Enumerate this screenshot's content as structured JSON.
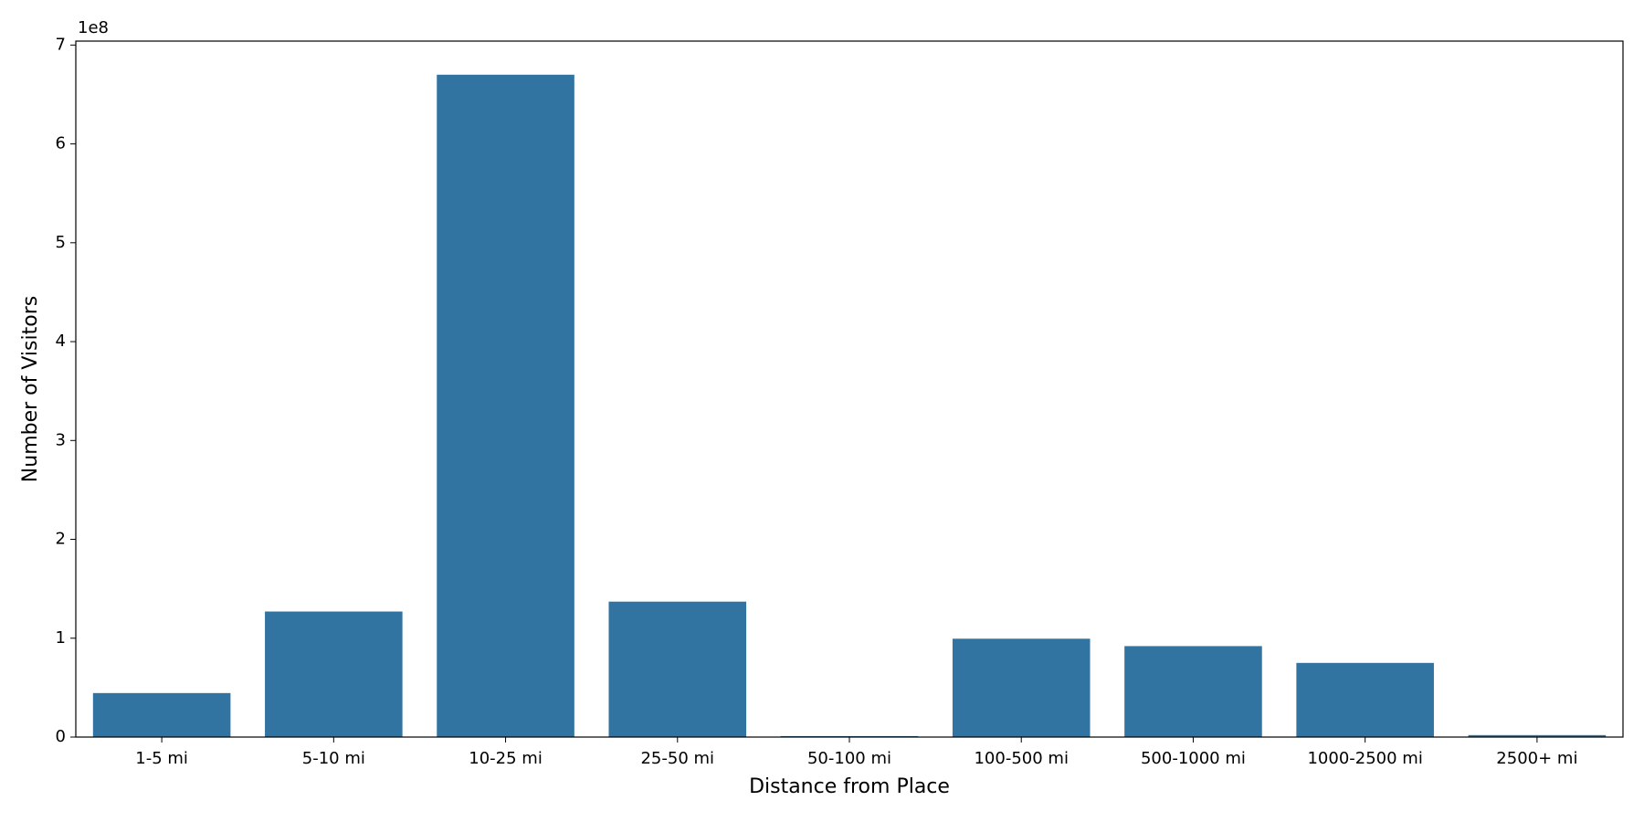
{
  "chart_data": {
    "type": "bar",
    "x_label": "Distance from Place",
    "y_label": "Number of Visitors",
    "y_offset_label": "1e8",
    "categories": [
      "1-5 mi",
      "5-10 mi",
      "10-25 mi",
      "25-50 mi",
      "50-100 mi",
      "100-500 mi",
      "500-1000 mi",
      "1000-2500 mi",
      "2500+ mi"
    ],
    "values": [
      44500000,
      127000000,
      670000000,
      137000000,
      1000000,
      99500000,
      92000000,
      75000000,
      2000000
    ],
    "color": "#3274a1",
    "ylim": [
      0,
      704000000
    ],
    "yticks": [
      {
        "value": 0,
        "label": "0"
      },
      {
        "value": 100000000,
        "label": "1"
      },
      {
        "value": 200000000,
        "label": "2"
      },
      {
        "value": 300000000,
        "label": "3"
      },
      {
        "value": 400000000,
        "label": "4"
      },
      {
        "value": 500000000,
        "label": "5"
      },
      {
        "value": 600000000,
        "label": "6"
      },
      {
        "value": 700000000,
        "label": "7"
      }
    ],
    "grid": false
  }
}
